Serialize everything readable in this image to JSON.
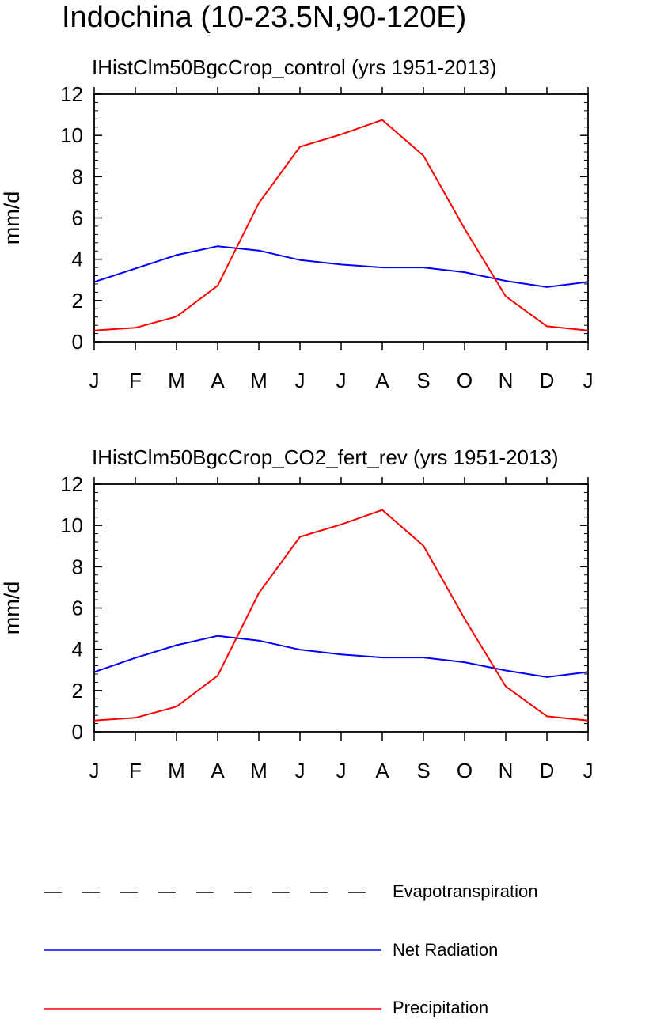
{
  "page_title": "Indochina (10-23.5N,90-120E)",
  "legend": {
    "items": [
      {
        "label": "Evapotranspiration",
        "color": "#000000",
        "style": "dashed"
      },
      {
        "label": "Net Radiation",
        "color": "#0000ff",
        "style": "solid"
      },
      {
        "label": "Precipitation",
        "color": "#ff0000",
        "style": "solid"
      }
    ]
  },
  "chart_data": [
    {
      "type": "line",
      "title": "IHistClm50BgcCrop_control (yrs 1951-2013)",
      "ylabel": "mm/d",
      "xlabel": "",
      "categories": [
        "J",
        "F",
        "M",
        "A",
        "M",
        "J",
        "J",
        "A",
        "S",
        "O",
        "N",
        "D",
        "J"
      ],
      "ylim": [
        0,
        12
      ],
      "yticks": [
        "0",
        "2",
        "4",
        "6",
        "8",
        "10",
        "12"
      ],
      "series": [
        {
          "name": "Net Radiation",
          "color": "#0000ff",
          "values": [
            2.9,
            3.55,
            4.2,
            4.63,
            4.42,
            3.96,
            3.74,
            3.6,
            3.6,
            3.37,
            2.95,
            2.65,
            2.9
          ]
        },
        {
          "name": "Precipitation",
          "color": "#ff0000",
          "values": [
            0.55,
            0.68,
            1.22,
            2.72,
            6.72,
            9.45,
            10.05,
            10.75,
            9.02,
            5.48,
            2.2,
            0.75,
            0.55
          ]
        }
      ]
    },
    {
      "type": "line",
      "title": "IHistClm50BgcCrop_CO2_fert_rev (yrs 1951-2013)",
      "ylabel": "mm/d",
      "xlabel": "",
      "categories": [
        "J",
        "F",
        "M",
        "A",
        "M",
        "J",
        "J",
        "A",
        "S",
        "O",
        "N",
        "D",
        "J"
      ],
      "ylim": [
        0,
        12
      ],
      "yticks": [
        "0",
        "2",
        "4",
        "6",
        "8",
        "10",
        "12"
      ],
      "series": [
        {
          "name": "Net Radiation",
          "color": "#0000ff",
          "values": [
            2.9,
            3.58,
            4.2,
            4.65,
            4.42,
            3.98,
            3.75,
            3.6,
            3.6,
            3.37,
            2.97,
            2.65,
            2.9
          ]
        },
        {
          "name": "Precipitation",
          "color": "#ff0000",
          "values": [
            0.55,
            0.68,
            1.22,
            2.72,
            6.72,
            9.45,
            10.05,
            10.75,
            9.02,
            5.48,
            2.2,
            0.75,
            0.55
          ]
        }
      ]
    }
  ]
}
